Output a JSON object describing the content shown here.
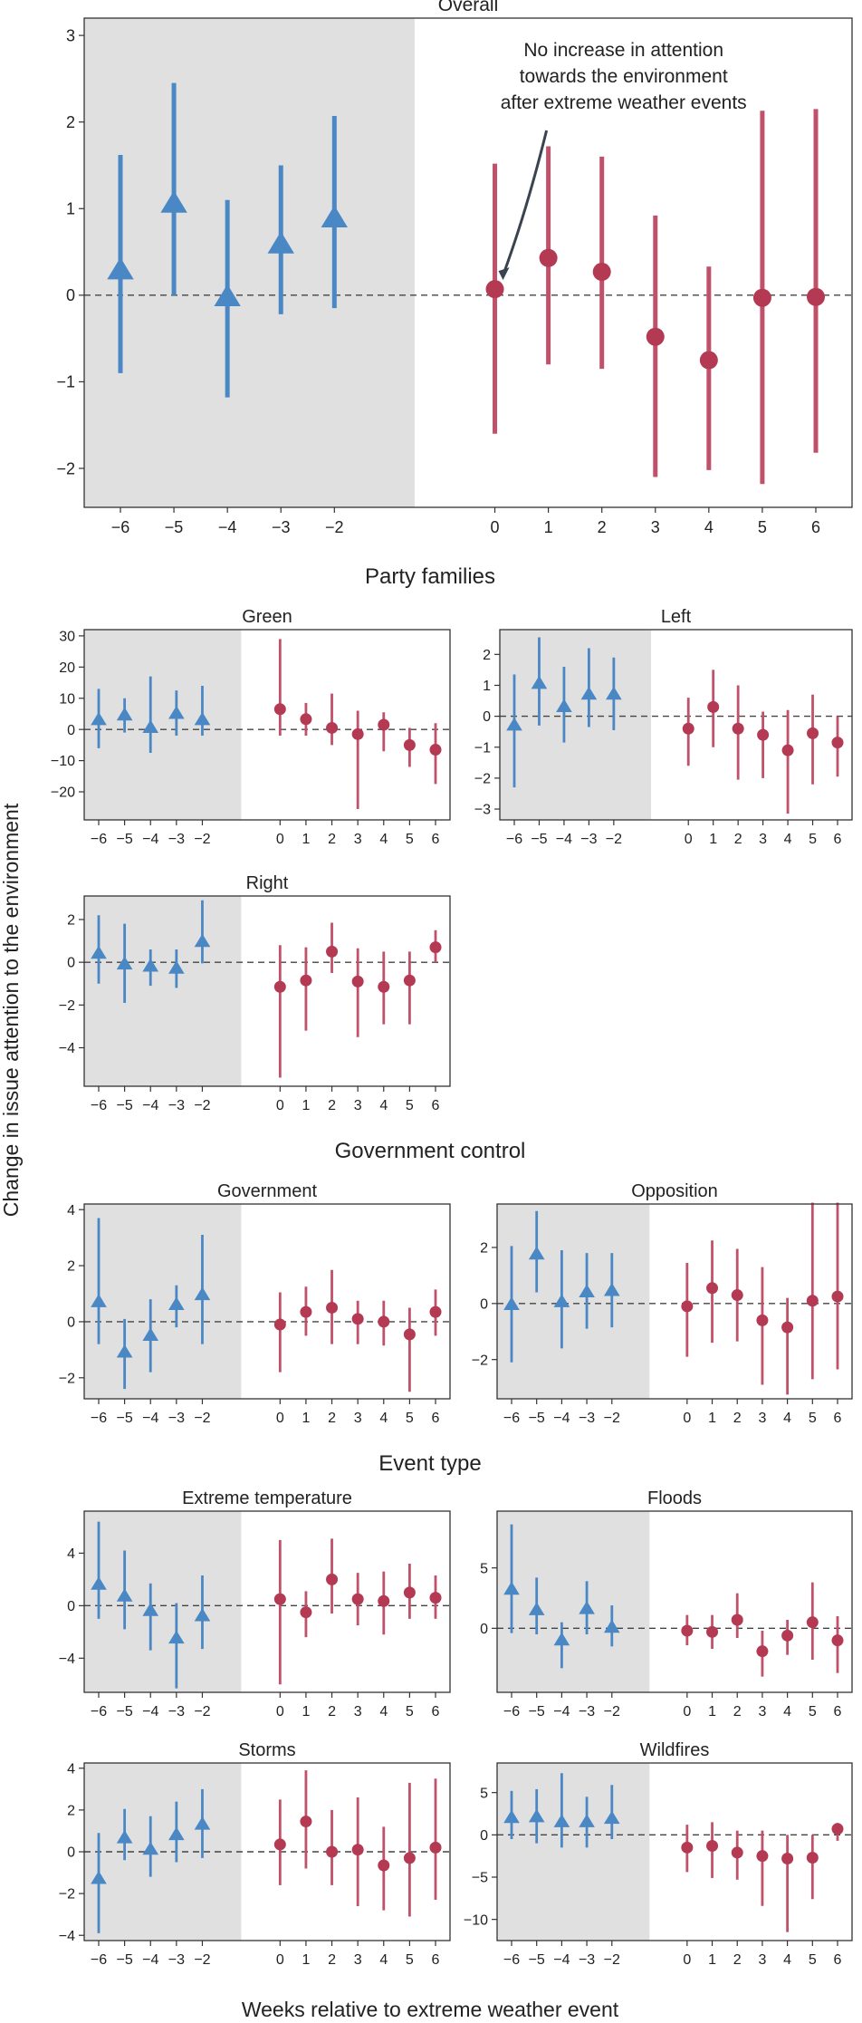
{
  "colors": {
    "pre": "#4a87c5",
    "post": "#b33a52",
    "post_line": "#c0516a",
    "shade": "#e0e0e0",
    "frame": "#333333"
  },
  "figure": {
    "ylabel": "Change in issue attention to the environment",
    "xlabel": "Weeks relative to extreme weather event",
    "sections": [
      {
        "id": "party",
        "title": "Party families"
      },
      {
        "id": "gov",
        "title": "Government control"
      },
      {
        "id": "event",
        "title": "Event type"
      }
    ]
  },
  "chart_data": [
    {
      "type": "scatter",
      "id": "overall",
      "title": "Overall",
      "marker_size": "large",
      "weeks_pre": [
        -6,
        -5,
        -4,
        -3,
        -2
      ],
      "weeks_post": [
        0,
        1,
        2,
        3,
        4,
        5,
        6
      ],
      "ylim": [
        -2.45,
        3.2
      ],
      "yticks": [
        -2,
        -1,
        0,
        1,
        2,
        3
      ],
      "pre": {
        "est": [
          0.28,
          1.05,
          -0.03,
          0.58,
          0.88
        ],
        "lo": [
          -0.9,
          0.0,
          -1.18,
          -0.22,
          -0.15
        ],
        "hi": [
          1.62,
          2.45,
          1.1,
          1.5,
          2.07
        ]
      },
      "post": {
        "est": [
          0.07,
          0.43,
          0.27,
          -0.48,
          -0.75,
          -0.03,
          -0.02
        ],
        "lo": [
          -1.6,
          -0.8,
          -0.85,
          -2.1,
          -2.02,
          -2.18,
          -1.82
        ],
        "hi": [
          1.52,
          1.72,
          1.6,
          0.92,
          0.33,
          2.13,
          2.15
        ]
      },
      "annotation": {
        "lines": [
          "No increase in attention",
          "towards the environment",
          "after extreme weather events"
        ]
      }
    },
    {
      "type": "scatter",
      "id": "green",
      "title": "Green",
      "weeks_pre": [
        -6,
        -5,
        -4,
        -3,
        -2
      ],
      "weeks_post": [
        0,
        1,
        2,
        3,
        4,
        5,
        6
      ],
      "ylim": [
        -29,
        32
      ],
      "yticks": [
        -20,
        -10,
        0,
        10,
        20,
        30
      ],
      "pre": {
        "est": [
          3,
          4.5,
          0.5,
          5,
          3
        ],
        "lo": [
          -6,
          -1,
          -7.5,
          -2,
          -2
        ],
        "hi": [
          13,
          10,
          17,
          12.5,
          14
        ]
      },
      "post": {
        "est": [
          6.5,
          3.3,
          0.5,
          -1.5,
          1.5,
          -5,
          -6.5
        ],
        "lo": [
          -2,
          -2,
          -5,
          -25.5,
          -7,
          -12,
          -17.5
        ],
        "hi": [
          29,
          8.5,
          11.5,
          6,
          5.5,
          0.5,
          2
        ]
      }
    },
    {
      "type": "scatter",
      "id": "left",
      "title": "Left",
      "weeks_pre": [
        -6,
        -5,
        -4,
        -3,
        -2
      ],
      "weeks_post": [
        0,
        1,
        2,
        3,
        4,
        5,
        6
      ],
      "ylim": [
        -3.35,
        2.8
      ],
      "yticks": [
        -3,
        -2,
        -1,
        0,
        1,
        2
      ],
      "pre": {
        "est": [
          -0.3,
          1.05,
          0.3,
          0.7,
          0.7
        ],
        "lo": [
          -2.3,
          -0.3,
          -0.85,
          -0.35,
          -0.45
        ],
        "hi": [
          1.35,
          2.55,
          1.6,
          2.2,
          1.9
        ]
      },
      "post": {
        "est": [
          -0.4,
          0.3,
          -0.4,
          -0.6,
          -1.1,
          -0.55,
          -0.85
        ],
        "lo": [
          -1.6,
          -1.0,
          -2.05,
          -2.0,
          -3.15,
          -2.2,
          -1.95
        ],
        "hi": [
          0.6,
          1.5,
          1.0,
          0.15,
          0.2,
          0.7,
          0.0
        ]
      }
    },
    {
      "type": "scatter",
      "id": "right",
      "title": "Right",
      "weeks_pre": [
        -6,
        -5,
        -4,
        -3,
        -2
      ],
      "weeks_post": [
        0,
        1,
        2,
        3,
        4,
        5,
        6
      ],
      "ylim": [
        -5.8,
        3.1
      ],
      "yticks": [
        -4,
        -2,
        0,
        2
      ],
      "pre": {
        "est": [
          0.4,
          -0.1,
          -0.2,
          -0.3,
          0.95
        ],
        "lo": [
          -1.0,
          -1.9,
          -1.1,
          -1.2,
          -0.05
        ],
        "hi": [
          2.2,
          1.8,
          0.6,
          0.6,
          2.9
        ]
      },
      "post": {
        "est": [
          -1.15,
          -0.85,
          0.5,
          -0.9,
          -1.15,
          -0.85,
          0.7
        ],
        "lo": [
          -5.4,
          -3.2,
          -0.5,
          -3.5,
          -2.9,
          -2.9,
          0.0
        ],
        "hi": [
          0.8,
          0.7,
          1.85,
          0.65,
          0.5,
          0.5,
          1.5
        ]
      }
    },
    {
      "type": "scatter",
      "id": "government",
      "title": "Government",
      "weeks_pre": [
        -6,
        -5,
        -4,
        -3,
        -2
      ],
      "weeks_post": [
        0,
        1,
        2,
        3,
        4,
        5,
        6
      ],
      "ylim": [
        -2.75,
        4.2
      ],
      "yticks": [
        -2,
        0,
        2,
        4
      ],
      "pre": {
        "est": [
          0.7,
          -1.1,
          -0.5,
          0.6,
          0.95
        ],
        "lo": [
          -0.8,
          -2.4,
          -1.8,
          -0.2,
          -0.8
        ],
        "hi": [
          3.7,
          0.1,
          0.8,
          1.3,
          3.1
        ]
      },
      "post": {
        "est": [
          -0.1,
          0.35,
          0.5,
          0.1,
          0.0,
          -0.45,
          0.35
        ],
        "lo": [
          -1.8,
          -0.5,
          -0.8,
          -0.8,
          -0.85,
          -2.5,
          -0.5
        ],
        "hi": [
          1.05,
          1.25,
          1.85,
          0.75,
          0.75,
          0.5,
          1.15
        ]
      }
    },
    {
      "type": "scatter",
      "id": "opposition",
      "title": "Opposition",
      "weeks_pre": [
        -6,
        -5,
        -4,
        -3,
        -2
      ],
      "weeks_post": [
        0,
        1,
        2,
        3,
        4,
        5,
        6
      ],
      "ylim": [
        -3.4,
        3.55
      ],
      "yticks": [
        -2,
        0,
        2
      ],
      "pre": {
        "est": [
          -0.05,
          1.75,
          0.05,
          0.4,
          0.45
        ],
        "lo": [
          -2.1,
          0.4,
          -1.6,
          -0.9,
          -0.85
        ],
        "hi": [
          2.05,
          3.3,
          1.9,
          1.8,
          1.8
        ]
      },
      "post": {
        "est": [
          -0.1,
          0.55,
          0.3,
          -0.6,
          -0.85,
          0.1,
          0.25
        ],
        "lo": [
          -1.9,
          -1.4,
          -1.35,
          -2.9,
          -3.25,
          -2.7,
          -2.35
        ],
        "hi": [
          1.45,
          2.25,
          1.95,
          1.3,
          0.2,
          3.6,
          3.6
        ]
      }
    },
    {
      "type": "scatter",
      "id": "extreme_temperature",
      "title": "Extreme temperature",
      "weeks_pre": [
        -6,
        -5,
        -4,
        -3,
        -2
      ],
      "weeks_post": [
        0,
        1,
        2,
        3,
        4,
        5,
        6
      ],
      "ylim": [
        -6.6,
        7.2
      ],
      "yticks": [
        -4,
        0,
        4
      ],
      "pre": {
        "est": [
          1.6,
          0.7,
          -0.4,
          -2.5,
          -0.8
        ],
        "lo": [
          -1.0,
          -1.8,
          -3.4,
          -6.3,
          -3.3
        ],
        "hi": [
          6.4,
          4.2,
          1.7,
          0.2,
          2.3
        ]
      },
      "post": {
        "est": [
          0.5,
          -0.5,
          2.0,
          0.5,
          0.35,
          1.0,
          0.6
        ],
        "lo": [
          -6.0,
          -2.4,
          -0.6,
          -1.5,
          -2.2,
          -1.0,
          -1.0
        ],
        "hi": [
          5.0,
          1.1,
          5.1,
          2.5,
          2.6,
          3.2,
          2.3
        ]
      }
    },
    {
      "type": "scatter",
      "id": "floods",
      "title": "Floods",
      "weeks_pre": [
        -6,
        -5,
        -4,
        -3,
        -2
      ],
      "weeks_post": [
        0,
        1,
        2,
        3,
        4,
        5,
        6
      ],
      "ylim": [
        -5.3,
        9.7
      ],
      "yticks": [
        0,
        5
      ],
      "pre": {
        "est": [
          3.2,
          1.5,
          -1.0,
          1.6,
          0.05
        ],
        "lo": [
          -0.4,
          -0.5,
          -3.3,
          -0.5,
          -1.5
        ],
        "hi": [
          8.6,
          4.2,
          0.5,
          3.9,
          1.9
        ]
      },
      "post": {
        "est": [
          -0.2,
          -0.3,
          0.7,
          -1.9,
          -0.6,
          0.5,
          -1.0
        ],
        "lo": [
          -1.4,
          -1.7,
          -0.8,
          -4.0,
          -2.2,
          -2.6,
          -3.7
        ],
        "hi": [
          1.1,
          1.1,
          2.9,
          -0.2,
          0.7,
          3.8,
          1.0
        ]
      }
    },
    {
      "type": "scatter",
      "id": "storms",
      "title": "Storms",
      "weeks_pre": [
        -6,
        -5,
        -4,
        -3,
        -2
      ],
      "weeks_post": [
        0,
        1,
        2,
        3,
        4,
        5,
        6
      ],
      "ylim": [
        -4.25,
        4.25
      ],
      "yticks": [
        -4,
        -2,
        0,
        2,
        4
      ],
      "pre": {
        "est": [
          -1.3,
          0.65,
          0.1,
          0.8,
          1.3
        ],
        "lo": [
          -3.9,
          -0.4,
          -1.2,
          -0.5,
          -0.3
        ],
        "hi": [
          0.9,
          2.05,
          1.7,
          2.4,
          3.0
        ]
      },
      "post": {
        "est": [
          0.35,
          1.45,
          0.0,
          0.1,
          -0.65,
          -0.3,
          0.2
        ],
        "lo": [
          -1.6,
          -0.8,
          -1.6,
          -2.6,
          -2.8,
          -3.1,
          -2.3
        ],
        "hi": [
          2.5,
          3.9,
          2.0,
          2.6,
          1.2,
          3.3,
          3.5
        ]
      }
    },
    {
      "type": "scatter",
      "id": "wildfires",
      "title": "Wildfires",
      "weeks_pre": [
        -6,
        -5,
        -4,
        -3,
        -2
      ],
      "weeks_post": [
        0,
        1,
        2,
        3,
        4,
        5,
        6
      ],
      "ylim": [
        -12.5,
        8.5
      ],
      "yticks": [
        -10,
        -5,
        0,
        5
      ],
      "pre": {
        "est": [
          2.0,
          2.1,
          1.5,
          1.5,
          1.9
        ],
        "lo": [
          -0.5,
          -1.0,
          -1.5,
          -1.5,
          -0.5
        ],
        "hi": [
          5.2,
          5.4,
          7.3,
          4.5,
          5.9
        ]
      },
      "post": {
        "est": [
          -1.5,
          -1.3,
          -2.1,
          -2.5,
          -2.8,
          -2.7,
          0.7
        ],
        "lo": [
          -4.4,
          -5.1,
          -5.3,
          -8.4,
          -11.5,
          -7.6,
          -0.7
        ],
        "hi": [
          1.2,
          1.5,
          0.5,
          0.5,
          0.0,
          0.0,
          1.4
        ]
      }
    }
  ]
}
